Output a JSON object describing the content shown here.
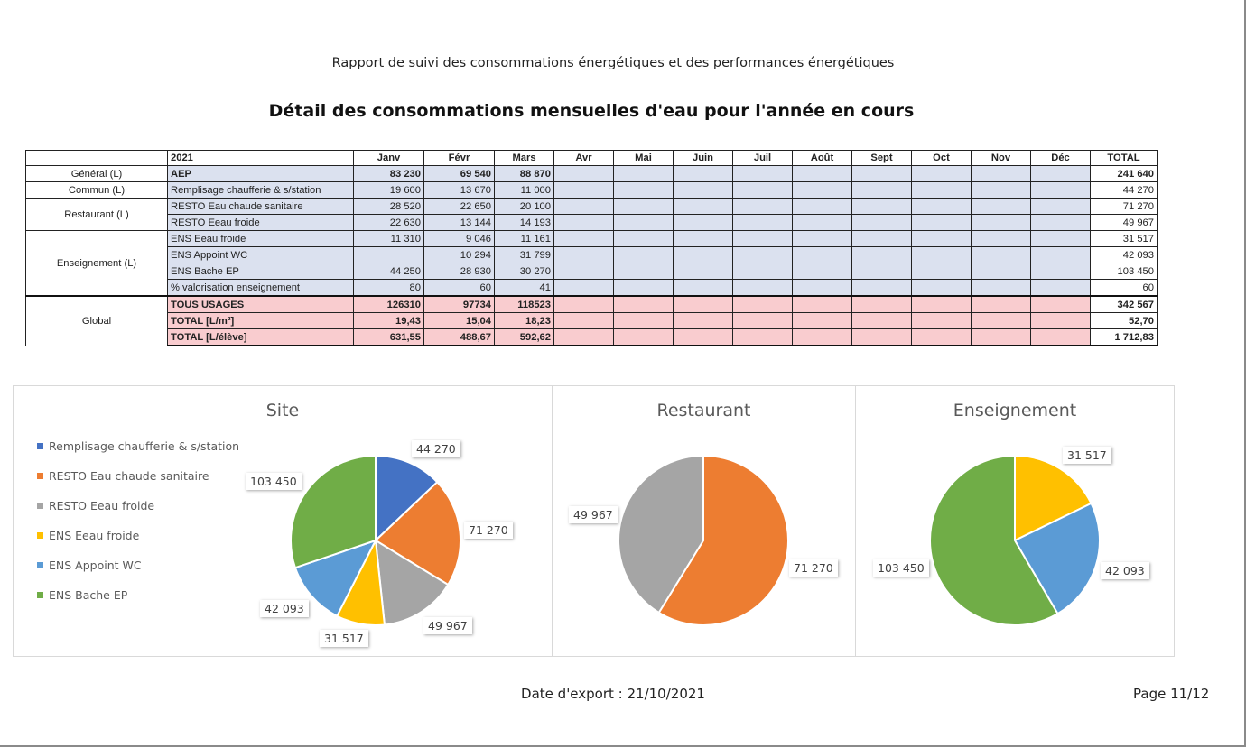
{
  "header": "Rapport de suivi des consommations énergétiques et des performances énergétiques",
  "title": "Détail des consommations mensuelles d'eau pour l'année en cours",
  "table": {
    "year": "2021",
    "months": [
      "Janv",
      "Févr",
      "Mars",
      "Avr",
      "Mai",
      "Juin",
      "Juil",
      "Août",
      "Sept",
      "Oct",
      "Nov",
      "Déc"
    ],
    "total_header": "TOTAL",
    "groups": {
      "general": "Général (L)",
      "commun": "Commun (L)",
      "restaurant": "Restaurant (L)",
      "enseignement": "Enseignement (L)",
      "global": "Global"
    },
    "rows": [
      {
        "label": "AEP",
        "values": [
          "83 230",
          "69 540",
          "88 870",
          "",
          "",
          "",
          "",
          "",
          "",
          "",
          "",
          ""
        ],
        "total": "241 640"
      },
      {
        "label": "Remplisage chaufferie & s/station",
        "values": [
          "19 600",
          "13 670",
          "11 000",
          "",
          "",
          "",
          "",
          "",
          "",
          "",
          "",
          ""
        ],
        "total": "44 270"
      },
      {
        "label": "RESTO Eau chaude sanitaire",
        "values": [
          "28 520",
          "22 650",
          "20 100",
          "",
          "",
          "",
          "",
          "",
          "",
          "",
          "",
          ""
        ],
        "total": "71 270"
      },
      {
        "label": "RESTO Eeau froide",
        "values": [
          "22 630",
          "13 144",
          "14 193",
          "",
          "",
          "",
          "",
          "",
          "",
          "",
          "",
          ""
        ],
        "total": "49 967"
      },
      {
        "label": "ENS Eeau froide",
        "values": [
          "11 310",
          "9 046",
          "11 161",
          "",
          "",
          "",
          "",
          "",
          "",
          "",
          "",
          ""
        ],
        "total": "31 517"
      },
      {
        "label": "ENS Appoint WC",
        "values": [
          "",
          "10 294",
          "31 799",
          "",
          "",
          "",
          "",
          "",
          "",
          "",
          "",
          ""
        ],
        "total": "42 093"
      },
      {
        "label": "ENS Bache EP",
        "values": [
          "44 250",
          "28 930",
          "30 270",
          "",
          "",
          "",
          "",
          "",
          "",
          "",
          "",
          ""
        ],
        "total": "103 450"
      },
      {
        "label": "% valorisation enseignement",
        "values": [
          "80",
          "60",
          "41",
          "",
          "",
          "",
          "",
          "",
          "",
          "",
          "",
          ""
        ],
        "total": "60"
      },
      {
        "label": "TOUS USAGES",
        "values": [
          "126310",
          "97734",
          "118523",
          "",
          "",
          "",
          "",
          "",
          "",
          "",
          "",
          ""
        ],
        "total": "342 567"
      },
      {
        "label": "TOTAL [L/m²]",
        "values": [
          "19,43",
          "15,04",
          "18,23",
          "",
          "",
          "",
          "",
          "",
          "",
          "",
          "",
          ""
        ],
        "total": "52,70"
      },
      {
        "label": "TOTAL [L/élève]",
        "values": [
          "631,55",
          "488,67",
          "592,62",
          "",
          "",
          "",
          "",
          "",
          "",
          "",
          "",
          ""
        ],
        "total": "1 712,83"
      }
    ]
  },
  "chart_data": [
    {
      "type": "pie",
      "title": "Site",
      "categories": [
        "Remplisage chaufferie & s/station",
        "RESTO Eau chaude sanitaire",
        "RESTO Eeau froide",
        "ENS Eeau froide",
        "ENS Appoint WC",
        "ENS Bache EP"
      ],
      "values": [
        44270,
        71270,
        49967,
        31517,
        42093,
        103450
      ],
      "labels": [
        "44 270",
        "71 270",
        "49 967",
        "31 517",
        "42 093",
        "103 450"
      ],
      "colors": [
        "#4472c4",
        "#ed7d31",
        "#a5a5a5",
        "#ffc000",
        "#5b9bd5",
        "#70ad47"
      ],
      "legend": "left"
    },
    {
      "type": "pie",
      "title": "Restaurant",
      "categories": [
        "RESTO Eau chaude sanitaire",
        "RESTO Eeau froide"
      ],
      "values": [
        71270,
        49967
      ],
      "labels": [
        "71 270",
        "49 967"
      ],
      "colors": [
        "#ed7d31",
        "#a5a5a5"
      ]
    },
    {
      "type": "pie",
      "title": "Enseignement",
      "categories": [
        "ENS Eeau froide",
        "ENS Appoint WC",
        "ENS Bache EP"
      ],
      "values": [
        31517,
        42093,
        103450
      ],
      "labels": [
        "31 517",
        "42 093",
        "103 450"
      ],
      "colors": [
        "#ffc000",
        "#5b9bd5",
        "#70ad47"
      ]
    }
  ],
  "footer": {
    "export_date": "Date d'export : 21/10/2021",
    "page": "Page 11/12"
  }
}
